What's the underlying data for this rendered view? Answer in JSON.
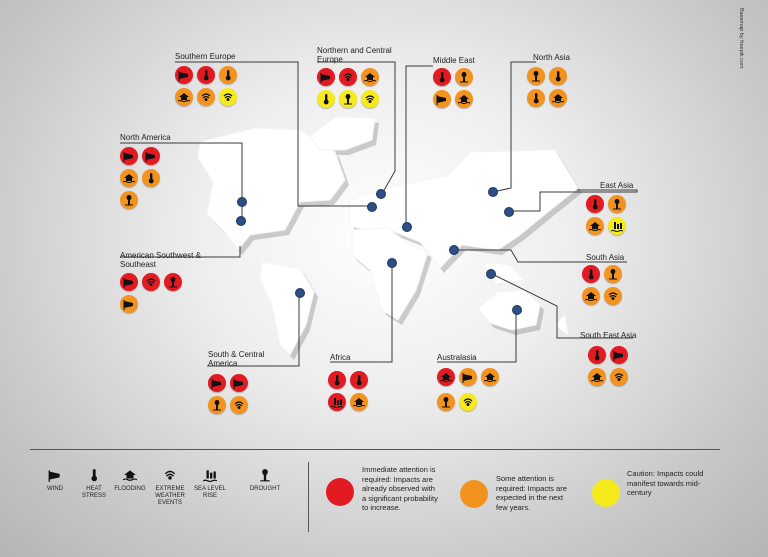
{
  "credit": "Basemap by freepik.com",
  "colors": {
    "red": "#e21b22",
    "orange": "#f3931f",
    "yellow": "#f6ea1c",
    "land": "#ffffff",
    "pin": "#2e4f86"
  },
  "regions": {
    "southern_europe": {
      "title": "Southern Europe",
      "icons": [
        [
          "wind",
          "red"
        ],
        [
          "heat",
          "red"
        ],
        [
          "heat",
          "orange"
        ],
        [
          "flooding",
          "orange"
        ],
        [
          "extreme",
          "orange"
        ],
        [
          "extreme",
          "yellow"
        ]
      ]
    },
    "northern_central_europe": {
      "title": "Northern and Central Europe",
      "icons": [
        [
          "wind",
          "red"
        ],
        [
          "extreme",
          "red"
        ],
        [
          "flooding",
          "orange"
        ],
        [
          "heat",
          "yellow"
        ],
        [
          "drought",
          "yellow"
        ],
        [
          "extreme",
          "yellow"
        ]
      ]
    },
    "middle_east": {
      "title": "Middle East",
      "icons": [
        [
          "heat",
          "red"
        ],
        [
          "drought",
          "orange"
        ],
        [
          "wind",
          "orange"
        ],
        [
          "flooding",
          "orange"
        ]
      ]
    },
    "north_asia": {
      "title": "North Asia",
      "icons": [
        [
          "drought",
          "orange"
        ],
        [
          "heat",
          "orange"
        ],
        [
          "heat",
          "orange"
        ],
        [
          "flooding",
          "orange"
        ]
      ]
    },
    "north_america": {
      "title": "North America",
      "icons": [
        [
          "wind",
          "red"
        ],
        [
          "wind",
          "red"
        ],
        [
          "flooding",
          "orange"
        ],
        [
          "heat",
          "orange"
        ],
        [
          "drought",
          "orange"
        ]
      ]
    },
    "east_asia": {
      "title": "East Asia",
      "icons": [
        [
          "heat",
          "red"
        ],
        [
          "drought",
          "orange"
        ],
        [
          "flooding",
          "orange"
        ],
        [
          "sealevel",
          "yellow"
        ]
      ]
    },
    "american_southwest": {
      "title": "American Southwest & Southeast",
      "icons": [
        [
          "wind",
          "red"
        ],
        [
          "extreme",
          "red"
        ],
        [
          "drought",
          "red"
        ],
        [
          "wind",
          "orange"
        ]
      ]
    },
    "south_asia": {
      "title": "South Asia",
      "icons": [
        [
          "heat",
          "red"
        ],
        [
          "drought",
          "orange"
        ],
        [
          "flooding",
          "orange"
        ],
        [
          "extreme",
          "orange"
        ]
      ]
    },
    "south_central_america": {
      "title": "South & Central America",
      "icons": [
        [
          "wind",
          "red"
        ],
        [
          "wind",
          "red"
        ],
        [
          "drought",
          "orange"
        ],
        [
          "extreme",
          "orange"
        ]
      ]
    },
    "africa": {
      "title": "Africa",
      "icons": [
        [
          "heat",
          "red"
        ],
        [
          "heat",
          "red"
        ],
        [
          "sealevel",
          "red"
        ],
        [
          "flooding",
          "orange"
        ]
      ]
    },
    "australasia": {
      "title": "Australasia",
      "icons": [
        [
          "flooding",
          "red"
        ],
        [
          "wind",
          "orange"
        ],
        [
          "flooding",
          "orange"
        ],
        [
          "drought",
          "orange"
        ],
        [
          "extreme",
          "yellow"
        ]
      ]
    },
    "south_east_asia": {
      "title": "South East Asia",
      "icons": [
        [
          "heat",
          "red"
        ],
        [
          "wind",
          "red"
        ],
        [
          "flooding",
          "orange"
        ],
        [
          "extreme",
          "orange"
        ]
      ]
    }
  },
  "legend": {
    "icons": [
      {
        "key": "wind",
        "label": "WIND"
      },
      {
        "key": "heat",
        "label": "HEAT STRESS"
      },
      {
        "key": "flooding",
        "label": "FLOODING"
      },
      {
        "key": "extreme",
        "label": "EXTREME WEATHER EVENTS"
      },
      {
        "key": "sealevel",
        "label": "SEA LEVEL RISE"
      },
      {
        "key": "drought",
        "label": "DROUGHT"
      }
    ],
    "levels": [
      {
        "color": "red",
        "text": "Immediate attention is required: Impacts are already observed with a significant probability to increase."
      },
      {
        "color": "orange",
        "text": "Some attention is required: Impacts are expected in the next few years."
      },
      {
        "color": "yellow",
        "text": "Caution: Impacts could manifest towards mid-century"
      }
    ]
  }
}
